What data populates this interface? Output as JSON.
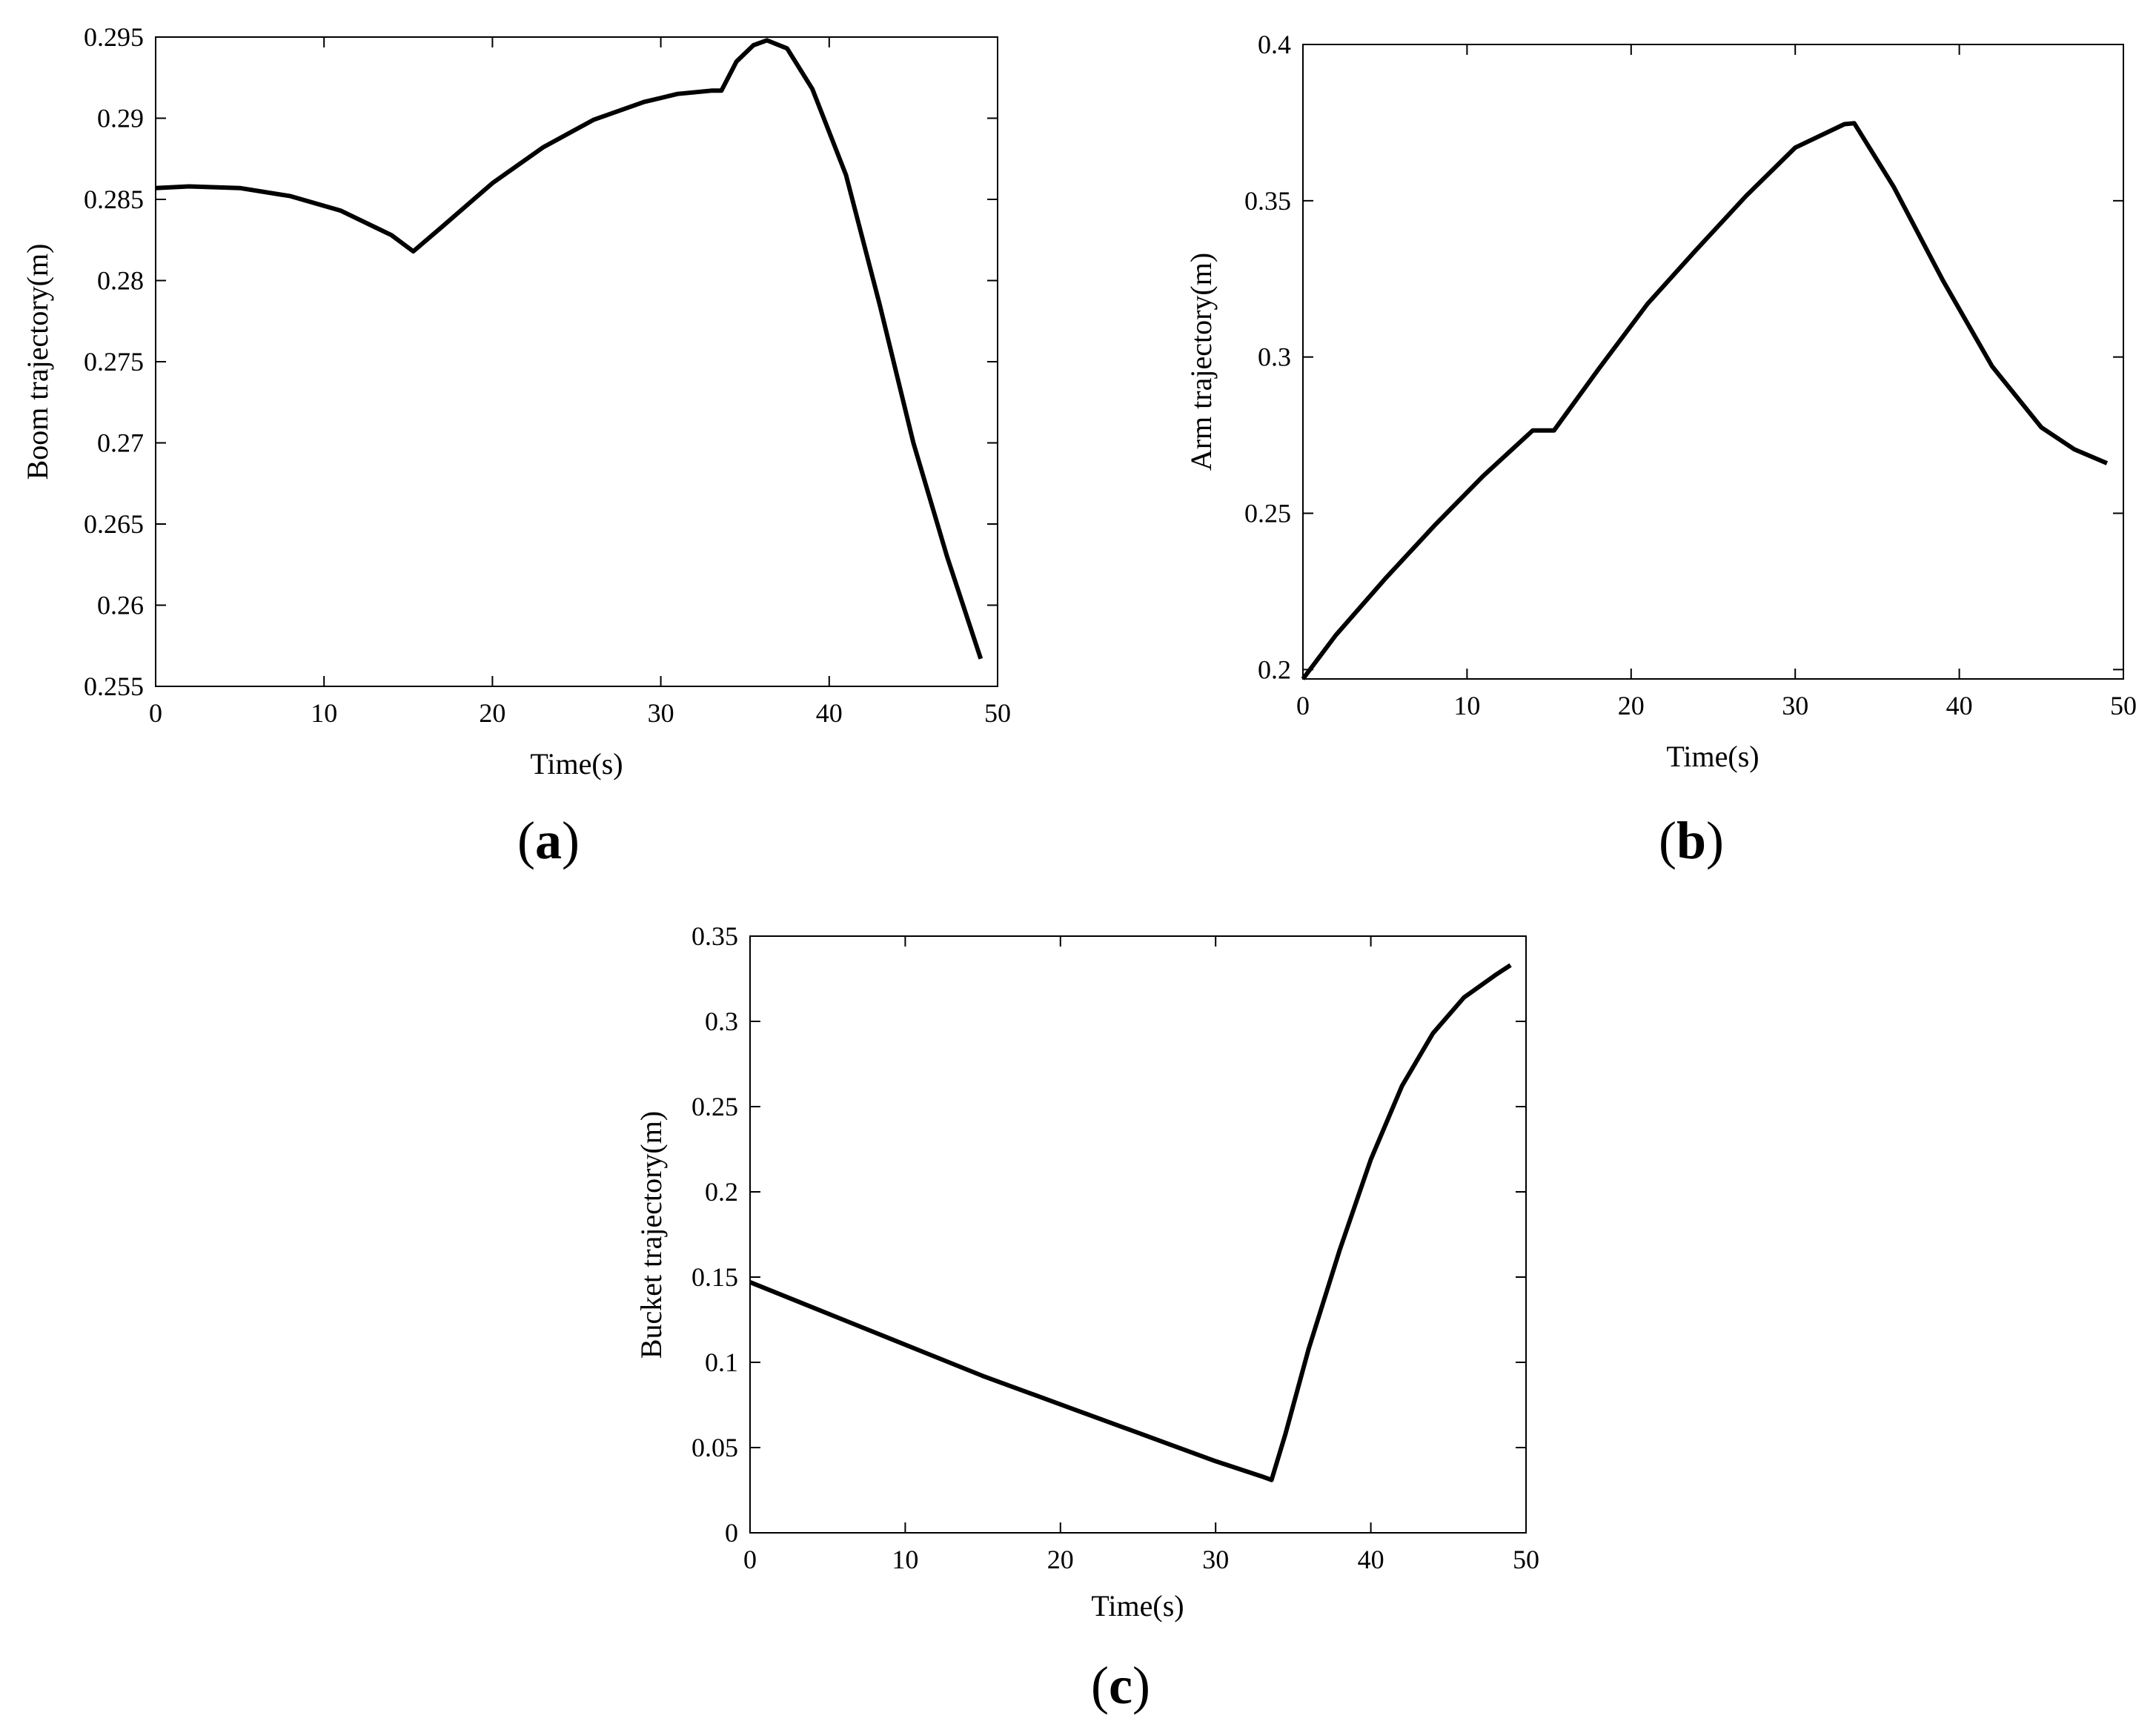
{
  "chart_data": [
    {
      "panel_label": "a",
      "type": "line",
      "xlabel": "Time(s)",
      "ylabel": "Boom trajectory(m)",
      "xlim": [
        0,
        50
      ],
      "ylim": [
        0.255,
        0.295
      ],
      "xticks": [
        0,
        10,
        20,
        30,
        40,
        50
      ],
      "xtick_labels": [
        "0",
        "10",
        "20",
        "30",
        "40",
        "50"
      ],
      "yticks": [
        0.255,
        0.26,
        0.265,
        0.27,
        0.275,
        0.28,
        0.285,
        0.29,
        0.295
      ],
      "ytick_labels": [
        "0.255",
        "0.26",
        "0.265",
        "0.27",
        "0.275",
        "0.28",
        "0.285",
        "0.29",
        "0.295"
      ],
      "grid": false,
      "series": [
        {
          "color": "#000000",
          "x": [
            0,
            2,
            5,
            8,
            11,
            14,
            15.3,
            17,
            20,
            23,
            26,
            29,
            31,
            33,
            33.6,
            34.5,
            35.5,
            36.3,
            37.5,
            39,
            41,
            43,
            45,
            47,
            49
          ],
          "y": [
            0.2857,
            0.2858,
            0.2857,
            0.2852,
            0.2843,
            0.2828,
            0.2818,
            0.2833,
            0.286,
            0.2882,
            0.2899,
            0.291,
            0.2915,
            0.2917,
            0.2917,
            0.2935,
            0.2945,
            0.2948,
            0.2943,
            0.2918,
            0.2865,
            0.2785,
            0.27,
            0.263,
            0.2567
          ]
        }
      ]
    },
    {
      "panel_label": "b",
      "type": "line",
      "xlabel": "Time(s)",
      "ylabel": "Arm trajectory(m)",
      "xlim": [
        0,
        50
      ],
      "ylim": [
        0.197,
        0.4
      ],
      "xticks": [
        0,
        10,
        20,
        30,
        40,
        50
      ],
      "xtick_labels": [
        "0",
        "10",
        "20",
        "30",
        "40",
        "50"
      ],
      "yticks": [
        0.2,
        0.25,
        0.3,
        0.35,
        0.4
      ],
      "ytick_labels": [
        "0.2",
        "0.25",
        "0.3",
        "0.35",
        "0.4"
      ],
      "grid": false,
      "series": [
        {
          "color": "#000000",
          "x": [
            0,
            2,
            5,
            8,
            11,
            14,
            15.3,
            18,
            21,
            24,
            27,
            30,
            33,
            33.6,
            36,
            39,
            42,
            45,
            47,
            49
          ],
          "y": [
            0.197,
            0.211,
            0.229,
            0.246,
            0.262,
            0.2765,
            0.2765,
            0.296,
            0.317,
            0.3345,
            0.3515,
            0.367,
            0.3745,
            0.3748,
            0.3545,
            0.3245,
            0.297,
            0.2775,
            0.2705,
            0.266
          ]
        }
      ]
    },
    {
      "panel_label": "c",
      "type": "line",
      "xlabel": "Time(s)",
      "ylabel": "Bucket trajectory(m)",
      "xlim": [
        0,
        50
      ],
      "ylim": [
        0,
        0.35
      ],
      "xticks": [
        0,
        10,
        20,
        30,
        40,
        50
      ],
      "xtick_labels": [
        "0",
        "10",
        "20",
        "30",
        "40",
        "50"
      ],
      "yticks": [
        0,
        0.05,
        0.1,
        0.15,
        0.2,
        0.25,
        0.3,
        0.35
      ],
      "ytick_labels": [
        "0",
        "0.05",
        "0.1",
        "0.15",
        "0.2",
        "0.25",
        "0.3",
        "0.35"
      ],
      "grid": false,
      "series": [
        {
          "color": "#000000",
          "x": [
            0,
            3,
            6,
            9,
            12,
            15,
            18,
            21,
            24,
            27,
            30,
            33,
            33.6,
            34.5,
            36,
            38,
            40,
            42,
            44,
            46,
            48,
            49
          ],
          "y": [
            0.147,
            0.136,
            0.125,
            0.114,
            0.103,
            0.092,
            0.082,
            0.072,
            0.062,
            0.052,
            0.042,
            0.033,
            0.031,
            0.058,
            0.108,
            0.166,
            0.219,
            0.262,
            0.293,
            0.314,
            0.327,
            0.333
          ]
        }
      ]
    }
  ]
}
